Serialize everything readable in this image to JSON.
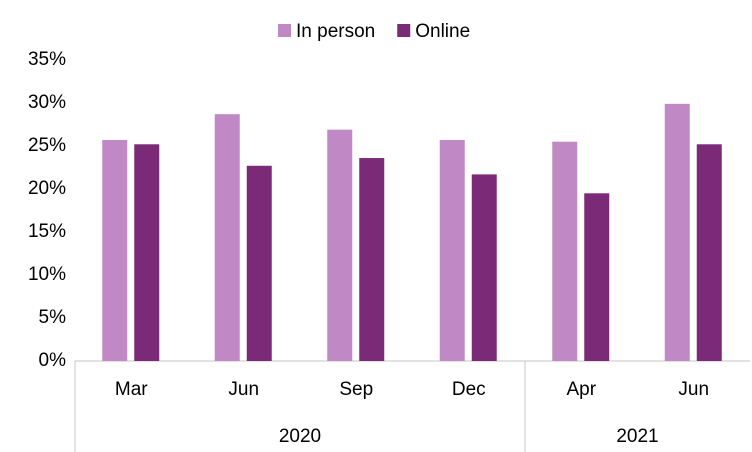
{
  "chart_data": {
    "type": "bar",
    "categories": [
      "Mar",
      "Jun",
      "Sep",
      "Dec",
      "Apr",
      "Jun"
    ],
    "category_groups": [
      "2020",
      null,
      null,
      null,
      "2021",
      null
    ],
    "series": [
      {
        "name": "In person",
        "color": "#c088c4",
        "values": [
          25.7,
          28.7,
          26.9,
          25.7,
          25.5,
          29.9
        ]
      },
      {
        "name": "Online",
        "color": "#7b2a78",
        "values": [
          25.2,
          22.7,
          23.6,
          21.7,
          19.5,
          25.2
        ]
      }
    ],
    "ylim": [
      0,
      35
    ],
    "yticks": [
      {
        "value": 0,
        "label": "0%"
      },
      {
        "value": 5,
        "label": "5%"
      },
      {
        "value": 10,
        "label": "10%"
      },
      {
        "value": 15,
        "label": "15%"
      },
      {
        "value": 20,
        "label": "20%"
      },
      {
        "value": 25,
        "label": "25%"
      },
      {
        "value": 30,
        "label": "30%"
      },
      {
        "value": 35,
        "label": "35%"
      }
    ],
    "grid": false,
    "legend": "top"
  }
}
